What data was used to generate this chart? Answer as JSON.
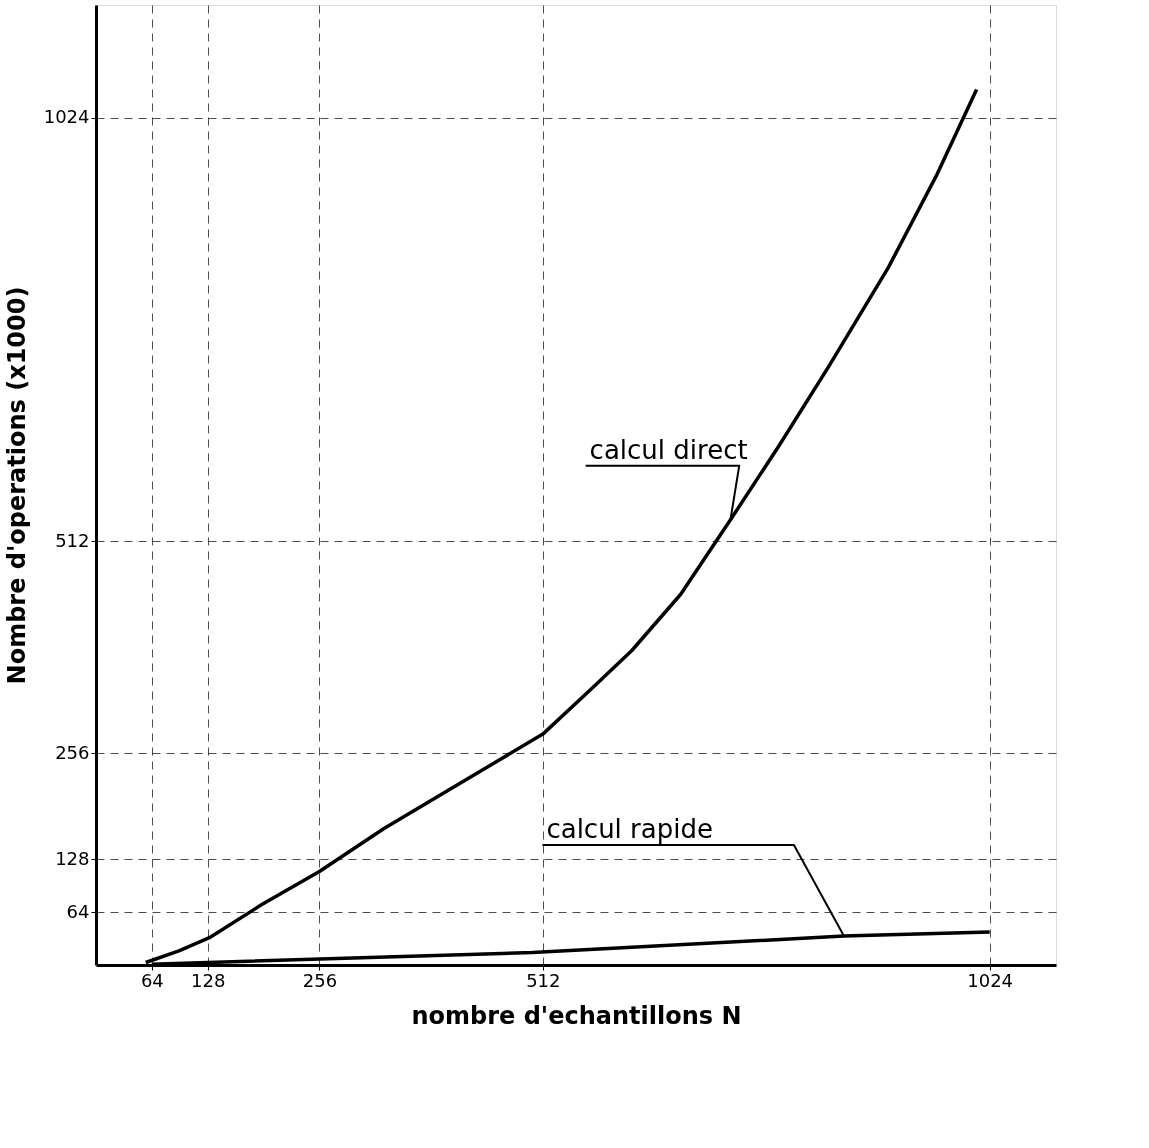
{
  "chart_data": {
    "type": "line",
    "xlabel": "nombre d'echantillons N",
    "ylabel": "Nombre d'operations (x1000)",
    "xlim": [
      0,
      1100
    ],
    "ylim": [
      0,
      1160
    ],
    "xticks": [
      64,
      128,
      256,
      512,
      1024
    ],
    "yticks": [
      64,
      128,
      256,
      512,
      1024
    ],
    "grid": true,
    "line_style": "solid",
    "series": [
      {
        "name": "calcul direct",
        "color": "#000000",
        "x": [
          57,
          95,
          130,
          190,
          256,
          330,
          421,
          512,
          569,
          614,
          670,
          727,
          783,
          840,
          908,
          964,
          1009
        ],
        "values": [
          3,
          17,
          33,
          73,
          113,
          165,
          222,
          279,
          335,
          380,
          448,
          538,
          628,
          724,
          843,
          956,
          1058
        ]
      },
      {
        "name": "calcul rapide",
        "color": "#000000",
        "x": [
          64,
          500,
          857,
          1024
        ],
        "values": [
          1,
          15,
          35,
          40
        ]
      }
    ]
  }
}
